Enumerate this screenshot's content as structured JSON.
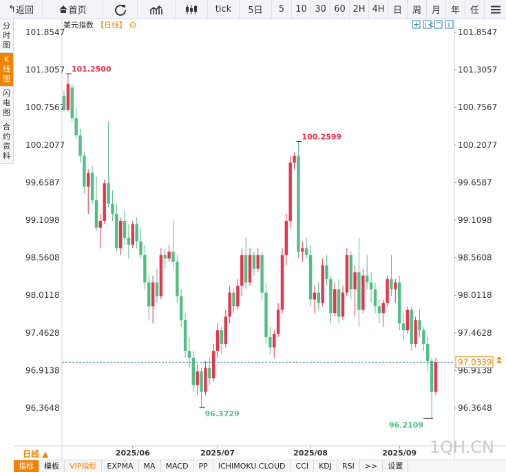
{
  "toolbar": {
    "back": "返回",
    "home": "首页",
    "periods": [
      "tick",
      "5日",
      "5",
      "10",
      "30",
      "60",
      "2H",
      "4H",
      "日",
      "周",
      "月",
      "年",
      "任"
    ]
  },
  "sidebar": [
    "分时图",
    "K线图",
    "闪电图",
    "合约资料"
  ],
  "chart_data": {
    "type": "candlestick",
    "title": "美元指数",
    "subtitle": "【日线】",
    "period_button": "日线 ▲",
    "watermark": "1QH.CN",
    "up_color": "#e8344e",
    "down_color": "#4fbf85",
    "price_line_color": "#2e7fa8",
    "ylim": [
      95.8115,
      101.925
    ],
    "yticks": [
      101.8547,
      101.3057,
      100.7567,
      100.2077,
      99.6587,
      99.1098,
      98.5608,
      98.0118,
      97.4628,
      96.9138,
      96.3648
    ],
    "categories": [
      null,
      null,
      null,
      null,
      null,
      null,
      null,
      null,
      null,
      null,
      null,
      null,
      null,
      null,
      null,
      null,
      null,
      "2025/06",
      null,
      null,
      null,
      null,
      null,
      null,
      null,
      null,
      null,
      null,
      null,
      null,
      null,
      null,
      null,
      null,
      null,
      null,
      null,
      null,
      "2025/07",
      null,
      null,
      null,
      null,
      null,
      null,
      null,
      null,
      null,
      null,
      null,
      null,
      null,
      null,
      null,
      null,
      null,
      null,
      null,
      null,
      null,
      null,
      "2025/08",
      null,
      null,
      null,
      null,
      null,
      null,
      null,
      null,
      null,
      null,
      null,
      null,
      null,
      null,
      null,
      null,
      null,
      null,
      null,
      null,
      null,
      "2025/09",
      null,
      null,
      null,
      null,
      null,
      null,
      null,
      null,
      null
    ],
    "ohlc": [
      [
        100.92,
        101.0,
        100.7,
        100.72
      ],
      [
        100.72,
        101.25,
        100.7,
        101.1
      ],
      [
        101.05,
        101.1,
        100.55,
        100.6
      ],
      [
        100.6,
        100.75,
        100.3,
        100.35
      ],
      [
        100.35,
        100.45,
        99.95,
        100.05
      ],
      [
        100.05,
        100.1,
        99.5,
        99.6
      ],
      [
        99.6,
        99.85,
        99.2,
        99.8
      ],
      [
        99.8,
        99.9,
        99.35,
        99.4
      ],
      [
        99.4,
        99.75,
        98.95,
        99.0
      ],
      [
        99.0,
        99.2,
        98.7,
        99.1
      ],
      [
        99.1,
        99.7,
        99.05,
        99.65
      ],
      [
        99.65,
        100.55,
        99.3,
        99.35
      ],
      [
        99.35,
        99.55,
        99.1,
        99.2
      ],
      [
        99.2,
        99.35,
        98.65,
        98.7
      ],
      [
        98.7,
        99.15,
        98.6,
        99.1
      ],
      [
        99.1,
        99.25,
        98.75,
        98.85
      ],
      [
        98.85,
        99.05,
        98.55,
        98.75
      ],
      [
        98.75,
        99.1,
        98.7,
        99.05
      ],
      [
        99.05,
        99.15,
        98.7,
        98.8
      ],
      [
        98.8,
        99.0,
        98.55,
        98.6
      ],
      [
        98.6,
        98.75,
        98.1,
        98.2
      ],
      [
        98.2,
        98.3,
        97.65,
        97.85
      ],
      [
        97.85,
        98.3,
        97.6,
        98.2
      ],
      [
        98.2,
        98.4,
        97.9,
        98.0
      ],
      [
        98.0,
        98.7,
        97.95,
        98.6
      ],
      [
        98.6,
        98.7,
        98.4,
        98.55
      ],
      [
        98.55,
        98.75,
        98.5,
        98.65
      ],
      [
        98.65,
        99.1,
        98.4,
        98.5
      ],
      [
        98.5,
        98.6,
        97.9,
        98.0
      ],
      [
        98.0,
        98.1,
        97.55,
        97.65
      ],
      [
        97.65,
        97.75,
        97.1,
        97.2
      ],
      [
        97.2,
        97.4,
        96.95,
        97.1
      ],
      [
        97.1,
        97.2,
        96.6,
        96.7
      ],
      [
        96.7,
        97.0,
        96.55,
        96.9
      ],
      [
        96.9,
        96.95,
        96.3729,
        96.6
      ],
      [
        96.6,
        97.05,
        96.55,
        96.95
      ],
      [
        96.95,
        97.1,
        96.7,
        96.8
      ],
      [
        96.8,
        97.3,
        96.75,
        97.2
      ],
      [
        97.2,
        97.6,
        97.1,
        97.5
      ],
      [
        97.5,
        97.55,
        97.15,
        97.3
      ],
      [
        97.3,
        97.8,
        97.25,
        97.7
      ],
      [
        97.7,
        98.15,
        97.6,
        98.05
      ],
      [
        98.05,
        98.1,
        97.75,
        97.85
      ],
      [
        97.85,
        98.25,
        97.8,
        98.15
      ],
      [
        98.15,
        98.7,
        98.0,
        98.6
      ],
      [
        98.6,
        98.85,
        98.1,
        98.2
      ],
      [
        98.2,
        98.7,
        98.15,
        98.6
      ],
      [
        98.6,
        98.65,
        98.3,
        98.4
      ],
      [
        98.4,
        98.7,
        98.35,
        98.6
      ],
      [
        98.6,
        98.65,
        97.95,
        98.05
      ],
      [
        98.05,
        98.2,
        97.3,
        97.4
      ],
      [
        97.4,
        97.55,
        97.15,
        97.25
      ],
      [
        97.25,
        97.5,
        97.1,
        97.45
      ],
      [
        97.45,
        97.9,
        97.4,
        97.8
      ],
      [
        97.8,
        98.7,
        97.75,
        98.6
      ],
      [
        98.6,
        99.2,
        98.45,
        99.1
      ],
      [
        99.1,
        100.05,
        99.0,
        99.95
      ],
      [
        99.95,
        100.1,
        99.85,
        100.05
      ],
      [
        100.05,
        100.2599,
        98.55,
        98.65
      ],
      [
        98.65,
        98.8,
        98.5,
        98.7
      ],
      [
        98.7,
        98.85,
        98.55,
        98.6
      ],
      [
        98.6,
        98.75,
        97.85,
        97.95
      ],
      [
        97.95,
        98.15,
        97.75,
        98.05
      ],
      [
        98.05,
        98.2,
        97.8,
        97.9
      ],
      [
        97.9,
        98.55,
        97.85,
        98.45
      ],
      [
        98.45,
        98.6,
        98.15,
        98.25
      ],
      [
        98.25,
        98.3,
        97.6,
        97.75
      ],
      [
        97.75,
        98.2,
        97.7,
        98.1
      ],
      [
        98.1,
        98.25,
        97.6,
        97.7
      ],
      [
        97.7,
        98.15,
        97.65,
        98.05
      ],
      [
        98.05,
        98.7,
        98.0,
        98.6
      ],
      [
        98.6,
        98.65,
        97.95,
        98.1
      ],
      [
        98.1,
        98.45,
        97.7,
        98.35
      ],
      [
        98.35,
        98.85,
        97.55,
        97.8
      ],
      [
        97.8,
        98.4,
        97.75,
        98.3
      ],
      [
        98.3,
        98.6,
        98.1,
        98.2
      ],
      [
        98.2,
        98.35,
        97.9,
        98.1
      ],
      [
        98.1,
        98.2,
        97.75,
        97.85
      ],
      [
        97.85,
        97.95,
        97.6,
        97.75
      ],
      [
        97.75,
        97.95,
        97.55,
        97.9
      ],
      [
        97.9,
        98.3,
        97.85,
        98.25
      ],
      [
        98.25,
        98.6,
        98.0,
        98.1
      ],
      [
        98.1,
        98.25,
        97.9,
        98.2
      ],
      [
        98.2,
        98.3,
        97.5,
        97.6
      ],
      [
        97.6,
        97.75,
        97.35,
        97.5
      ],
      [
        97.5,
        97.85,
        97.45,
        97.8
      ],
      [
        97.8,
        97.85,
        97.2,
        97.3
      ],
      [
        97.3,
        97.7,
        97.25,
        97.65
      ],
      [
        97.65,
        97.8,
        97.4,
        97.5
      ],
      [
        97.5,
        97.55,
        97.2,
        97.3
      ],
      [
        97.3,
        97.4,
        96.9,
        97.05
      ],
      [
        97.05,
        97.1,
        96.2109,
        96.6
      ],
      [
        96.6,
        97.1,
        96.55,
        97.0339
      ]
    ],
    "annotations": [
      {
        "value": 101.25,
        "label": "101.2500"
      },
      {
        "value": 100.2599,
        "label": "100.2599"
      },
      {
        "value": 96.3729,
        "label": "96.3729"
      },
      {
        "value": 96.2109,
        "label": "96.2109"
      }
    ]
  },
  "indicator_tabs": [
    "指标",
    "模板",
    "VIP指标",
    "EXPMA",
    "MA",
    "MACD",
    "PP",
    "ICHIMOKU CLOUD",
    "CCI",
    "KDJ",
    "RSI",
    ">>",
    "设置"
  ]
}
